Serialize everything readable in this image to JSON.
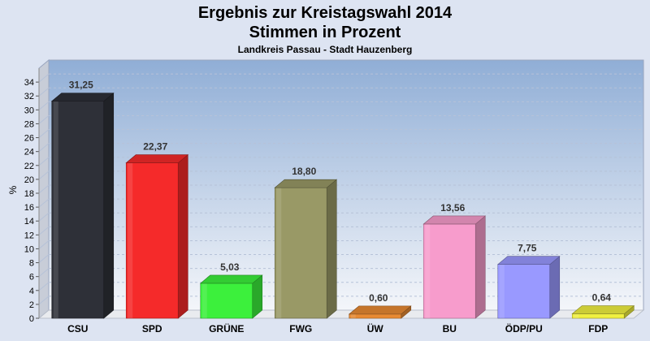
{
  "chart_data": {
    "type": "bar",
    "title": "Ergebnis zur Kreistagswahl 2014",
    "subtitle_line": "Stimmen in Prozent",
    "caption": "Landkreis Passau - Stadt Hauzenberg",
    "ylabel": "%",
    "xlabel": "",
    "ylim": [
      0,
      36
    ],
    "yticks": [
      0,
      2,
      4,
      6,
      8,
      10,
      12,
      14,
      16,
      18,
      20,
      22,
      24,
      26,
      28,
      30,
      32,
      34
    ],
    "grid": true,
    "categories": [
      "CSU",
      "SPD",
      "GRÜNE",
      "FWG",
      "ÜW",
      "BU",
      "ÖDP/PU",
      "FDP"
    ],
    "values": [
      31.25,
      22.37,
      5.03,
      18.8,
      0.6,
      13.56,
      7.75,
      0.64
    ],
    "value_labels": [
      "31,25",
      "22,37",
      "5,03",
      "18,80",
      "0,60",
      "13,56",
      "7,75",
      "0,64"
    ],
    "colors": [
      "#2e3038",
      "#f52a2a",
      "#3cf03c",
      "#999966",
      "#e88a33",
      "#f79ccc",
      "#9999ff",
      "#f0f040"
    ]
  }
}
